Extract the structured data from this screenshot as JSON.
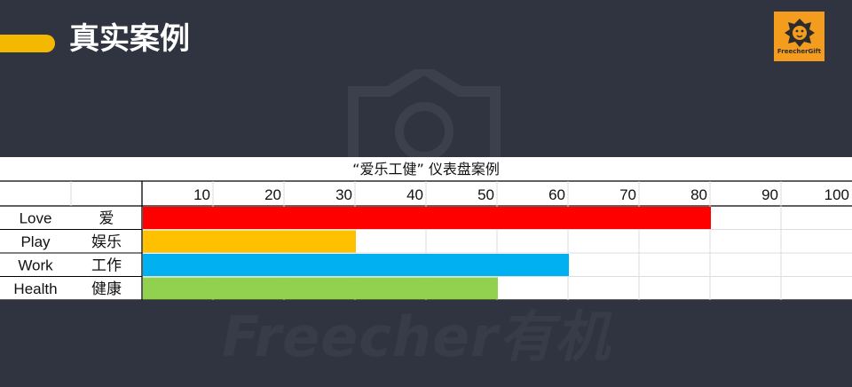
{
  "slide": {
    "title": "真实案例",
    "logo_text": "FreecherGift",
    "watermark_text": "Freecher有机"
  },
  "colors": {
    "background": "#2f3440",
    "accent": "#f5b800",
    "logo_bg": "#f39c1e"
  },
  "chart_data": {
    "type": "bar",
    "orientation": "horizontal",
    "title": "“爱乐工健” 仪表盘案例",
    "ticks": [
      10,
      20,
      30,
      40,
      50,
      60,
      70,
      80,
      90,
      100
    ],
    "xlim": [
      0,
      100
    ],
    "grid": true,
    "categories": [
      {
        "en": "Love",
        "zh": "爱",
        "value": 80,
        "color": "#ff0000"
      },
      {
        "en": "Play",
        "zh": "娱乐",
        "value": 30,
        "color": "#ffc000"
      },
      {
        "en": "Work",
        "zh": "工作",
        "value": 60,
        "color": "#00b0f0"
      },
      {
        "en": "Health",
        "zh": "健康",
        "value": 50,
        "color": "#92d050"
      }
    ]
  }
}
